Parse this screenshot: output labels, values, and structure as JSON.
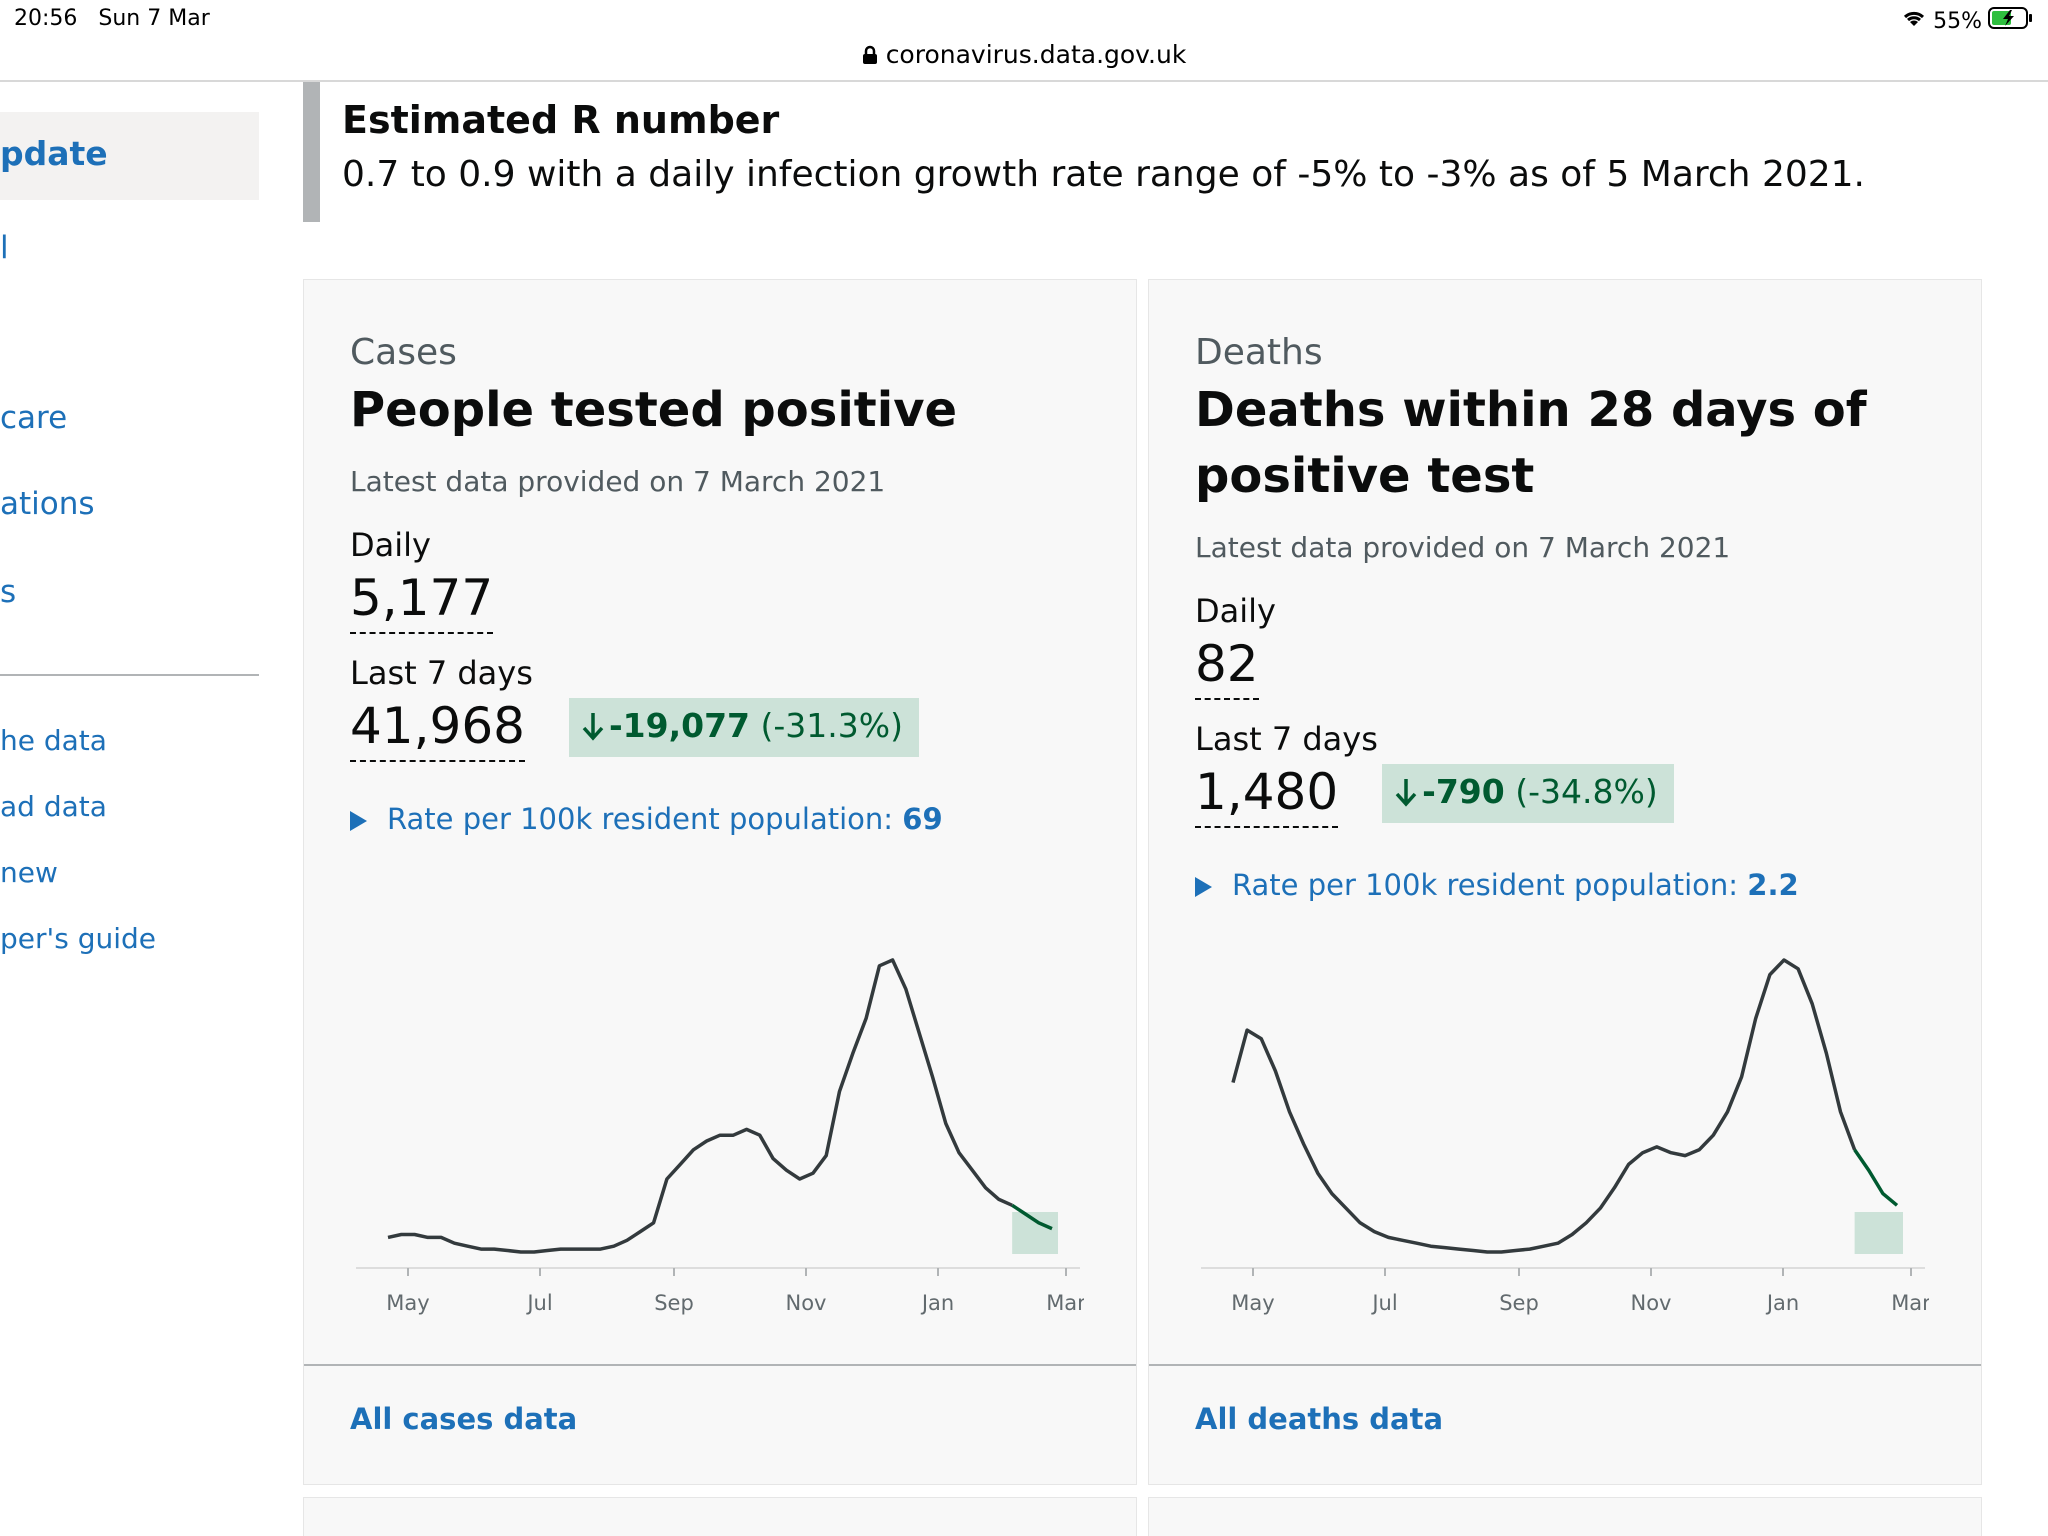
{
  "status": {
    "time": "20:56",
    "date": "Sun 7 Mar",
    "battery": "55%"
  },
  "browser": {
    "url": "coronavirus.data.gov.uk"
  },
  "sidebar": {
    "current": "pdate",
    "links": [
      {
        "label": "l"
      },
      {
        "label": "care"
      },
      {
        "label": "ations"
      },
      {
        "label": "s"
      }
    ],
    "secondary": [
      {
        "label": "he data"
      },
      {
        "label": "ad data"
      },
      {
        "label": "new"
      },
      {
        "label": "per's guide"
      }
    ]
  },
  "r_number": {
    "title": "Estimated R number",
    "text": "0.7 to 0.9 with a daily infection growth rate range of -5% to -3% as of 5 March 2021."
  },
  "cards": {
    "cases": {
      "caption": "Cases",
      "heading_line1": "People tested positive",
      "updated": "Latest data provided on 7 March 2021",
      "daily_label": "Daily",
      "daily_value": "5,177",
      "week_label": "Last 7 days",
      "week_value": "41,968",
      "change_value": "-19,077",
      "change_pct": "(-31.3%)",
      "rate_label": "Rate per 100k resident population: ",
      "rate_value": "69",
      "link": "All cases data"
    },
    "deaths": {
      "caption": "Deaths",
      "heading_line1": "Deaths within 28 days of",
      "heading_line2": "positive test",
      "updated": "Latest data provided on 7 March 2021",
      "daily_label": "Daily",
      "daily_value": "82",
      "week_label": "Last 7 days",
      "week_value": "1,480",
      "change_value": "-790",
      "change_pct": "(-34.8%)",
      "rate_label": "Rate per 100k resident population: ",
      "rate_value": "2.2",
      "link": "All deaths data"
    }
  },
  "colors": {
    "link": "#1d70b8",
    "change_bg": "#cce2d8",
    "change_text": "#005a30",
    "line": "#333a3d",
    "recent": "#005a30"
  },
  "chart_data": [
    {
      "type": "line",
      "name": "cases",
      "x_ticks": [
        "May",
        "Jul",
        "Sep",
        "Nov",
        "Jan",
        "Mar"
      ],
      "y": [
        0.05,
        0.06,
        0.06,
        0.05,
        0.05,
        0.03,
        0.02,
        0.01,
        0.01,
        0.005,
        0.0,
        0.0,
        0.005,
        0.01,
        0.01,
        0.01,
        0.01,
        0.02,
        0.04,
        0.07,
        0.1,
        0.25,
        0.3,
        0.35,
        0.38,
        0.4,
        0.4,
        0.42,
        0.4,
        0.32,
        0.28,
        0.25,
        0.27,
        0.33,
        0.55,
        0.68,
        0.8,
        0.98,
        1.0,
        0.9,
        0.75,
        0.6,
        0.44,
        0.34,
        0.28,
        0.22,
        0.18,
        0.16,
        0.13,
        0.1,
        0.08
      ]
    },
    {
      "type": "line",
      "name": "deaths",
      "x_ticks": [
        "May",
        "Jul",
        "Sep",
        "Nov",
        "Jan",
        "Mar"
      ],
      "y": [
        0.58,
        0.76,
        0.73,
        0.62,
        0.48,
        0.37,
        0.27,
        0.2,
        0.15,
        0.1,
        0.07,
        0.05,
        0.04,
        0.03,
        0.02,
        0.015,
        0.01,
        0.005,
        0.0,
        0.0,
        0.005,
        0.01,
        0.02,
        0.03,
        0.06,
        0.1,
        0.15,
        0.22,
        0.3,
        0.34,
        0.36,
        0.34,
        0.33,
        0.35,
        0.4,
        0.48,
        0.6,
        0.8,
        0.95,
        1.0,
        0.97,
        0.85,
        0.68,
        0.48,
        0.35,
        0.28,
        0.2,
        0.16
      ]
    }
  ]
}
